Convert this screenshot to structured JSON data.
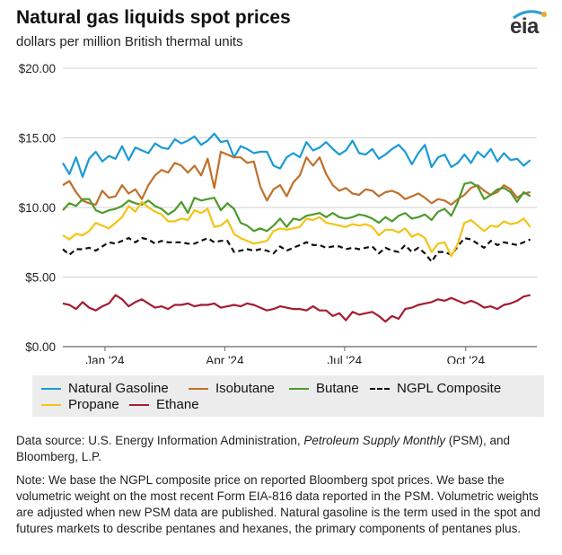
{
  "header": {
    "title": "Natural gas liquids spot prices",
    "subtitle": "dollars per million British thermal units",
    "logo_text": "eia"
  },
  "chart_data": {
    "type": "line",
    "title": "Natural gas liquids spot prices",
    "ylabel": "dollars per million British thermal units",
    "xlabel": "",
    "ylim": [
      0,
      20
    ],
    "yticks": [
      "$0.00",
      "$5.00",
      "$10.00",
      "$15.00",
      "$20.00"
    ],
    "ytick_values": [
      0,
      5,
      10,
      15,
      20
    ],
    "xlim_days": [
      0,
      360
    ],
    "xticks": [
      "Jan '24",
      "Apr '24",
      "Jul '24",
      "Oct '24"
    ],
    "xtick_days": [
      32,
      123,
      214,
      306
    ],
    "grid": true,
    "legend_position": "bottom",
    "series": [
      {
        "name": "Natural Gasoline",
        "color": "#1a9ad6",
        "dash": false,
        "x": [
          0,
          5,
          10,
          15,
          20,
          25,
          30,
          35,
          40,
          45,
          50,
          55,
          60,
          65,
          70,
          75,
          80,
          85,
          90,
          95,
          100,
          105,
          110,
          115,
          120,
          125,
          130,
          135,
          140,
          145,
          150,
          155,
          160,
          165,
          170,
          175,
          180,
          185,
          190,
          195,
          200,
          205,
          210,
          215,
          220,
          225,
          230,
          235,
          240,
          245,
          250,
          255,
          260,
          265,
          270,
          275,
          280,
          285,
          290,
          295,
          300,
          305,
          310,
          315,
          320,
          325,
          330,
          335,
          340,
          345,
          350,
          355
        ],
        "values": [
          13.2,
          12.4,
          13.6,
          12.2,
          13.5,
          14.0,
          13.3,
          13.7,
          13.5,
          14.4,
          13.4,
          14.3,
          14.1,
          13.9,
          14.6,
          14.3,
          14.2,
          14.9,
          14.6,
          14.8,
          15.1,
          14.5,
          14.8,
          15.3,
          14.7,
          14.8,
          13.6,
          14.4,
          14.2,
          13.9,
          14.0,
          14.0,
          13.0,
          12.8,
          13.6,
          13.9,
          13.6,
          14.7,
          14.1,
          14.3,
          14.7,
          14.2,
          13.8,
          14.1,
          14.8,
          13.9,
          13.8,
          14.2,
          13.5,
          13.8,
          14.2,
          14.5,
          14.0,
          13.1,
          13.9,
          14.5,
          12.9,
          13.6,
          13.8,
          12.9,
          13.2,
          13.8,
          13.2,
          14.0,
          13.6,
          14.2,
          13.3,
          13.9,
          13.4,
          13.5,
          13.0,
          13.4
        ]
      },
      {
        "name": "Isobutane",
        "color": "#c0702a",
        "dash": false,
        "x": [
          0,
          5,
          10,
          15,
          20,
          25,
          30,
          35,
          40,
          45,
          50,
          55,
          60,
          65,
          70,
          75,
          80,
          85,
          90,
          95,
          100,
          105,
          110,
          115,
          120,
          125,
          130,
          135,
          140,
          145,
          150,
          155,
          160,
          165,
          170,
          175,
          180,
          185,
          190,
          195,
          200,
          205,
          210,
          215,
          220,
          225,
          230,
          235,
          240,
          245,
          250,
          255,
          260,
          265,
          270,
          275,
          280,
          285,
          290,
          295,
          300,
          305,
          310,
          315,
          320,
          325,
          330,
          335,
          340,
          345,
          350,
          355
        ],
        "values": [
          11.6,
          11.9,
          11.1,
          10.5,
          10.3,
          10.2,
          11.2,
          10.7,
          10.8,
          11.6,
          11.0,
          11.3,
          10.6,
          11.6,
          12.3,
          12.7,
          12.5,
          13.2,
          13.0,
          12.5,
          13.0,
          12.3,
          13.5,
          11.4,
          14.0,
          13.8,
          13.6,
          13.6,
          13.2,
          13.3,
          11.5,
          10.5,
          11.3,
          11.6,
          10.8,
          11.8,
          12.3,
          13.6,
          13.0,
          13.6,
          12.4,
          11.6,
          11.2,
          11.4,
          11.0,
          10.9,
          11.3,
          11.2,
          10.8,
          11.1,
          11.2,
          11.0,
          10.6,
          10.8,
          11.0,
          10.7,
          10.3,
          10.6,
          10.5,
          10.2,
          10.6,
          10.9,
          11.4,
          11.6,
          11.2,
          10.9,
          11.1,
          11.6,
          11.3,
          10.7,
          11.0,
          11.1
        ]
      },
      {
        "name": "Butane",
        "color": "#4e9a2c",
        "dash": false,
        "x": [
          0,
          5,
          10,
          15,
          20,
          25,
          30,
          35,
          40,
          45,
          50,
          55,
          60,
          65,
          70,
          75,
          80,
          85,
          90,
          95,
          100,
          105,
          110,
          115,
          120,
          125,
          130,
          135,
          140,
          145,
          150,
          155,
          160,
          165,
          170,
          175,
          180,
          185,
          190,
          195,
          200,
          205,
          210,
          215,
          220,
          225,
          230,
          235,
          240,
          245,
          250,
          255,
          260,
          265,
          270,
          275,
          280,
          285,
          290,
          295,
          300,
          305,
          310,
          315,
          320,
          325,
          330,
          335,
          340,
          345,
          350,
          355
        ],
        "values": [
          9.8,
          10.3,
          10.1,
          10.6,
          10.6,
          9.8,
          9.6,
          9.8,
          9.9,
          10.1,
          10.5,
          10.3,
          10.2,
          10.5,
          10.1,
          9.9,
          9.5,
          9.8,
          10.4,
          9.6,
          10.7,
          10.5,
          10.6,
          10.7,
          9.8,
          10.3,
          9.9,
          8.9,
          8.7,
          8.3,
          8.5,
          8.3,
          8.7,
          9.2,
          8.6,
          9.2,
          9.1,
          9.4,
          9.5,
          9.6,
          9.3,
          9.6,
          9.3,
          9.2,
          9.3,
          9.5,
          9.4,
          9.2,
          8.9,
          9.3,
          9.0,
          9.4,
          9.6,
          9.2,
          9.3,
          9.5,
          9.1,
          9.7,
          9.9,
          9.4,
          10.4,
          11.7,
          11.8,
          11.5,
          10.6,
          10.9,
          11.3,
          11.4,
          11.1,
          10.4,
          11.1,
          10.8
        ]
      },
      {
        "name": "NGPL Composite",
        "color": "#111111",
        "dash": true,
        "x": [
          0,
          5,
          10,
          15,
          20,
          25,
          30,
          35,
          40,
          45,
          50,
          55,
          60,
          65,
          70,
          75,
          80,
          85,
          90,
          95,
          100,
          105,
          110,
          115,
          120,
          125,
          130,
          135,
          140,
          145,
          150,
          155,
          160,
          165,
          170,
          175,
          180,
          185,
          190,
          195,
          200,
          205,
          210,
          215,
          220,
          225,
          230,
          235,
          240,
          245,
          250,
          255,
          260,
          265,
          270,
          275,
          280,
          285,
          290,
          295,
          300,
          305,
          310,
          315,
          320,
          325,
          330,
          335,
          340,
          345,
          350,
          355
        ],
        "values": [
          7.0,
          6.6,
          7.0,
          7.0,
          7.1,
          6.9,
          7.2,
          7.5,
          7.4,
          7.6,
          7.8,
          7.5,
          7.8,
          7.7,
          7.4,
          7.6,
          7.5,
          7.5,
          7.5,
          7.4,
          7.4,
          7.6,
          7.8,
          7.5,
          7.6,
          7.6,
          6.8,
          6.9,
          7.0,
          6.9,
          7.0,
          6.9,
          6.7,
          7.2,
          6.9,
          7.1,
          7.3,
          7.5,
          7.3,
          7.3,
          7.1,
          7.2,
          7.2,
          7.0,
          7.1,
          7.0,
          7.1,
          7.2,
          6.7,
          7.1,
          6.9,
          6.8,
          7.3,
          6.8,
          7.1,
          6.7,
          6.1,
          6.8,
          6.8,
          6.6,
          7.2,
          7.8,
          7.7,
          7.4,
          7.1,
          7.6,
          7.3,
          7.5,
          7.4,
          7.3,
          7.5,
          7.7
        ]
      },
      {
        "name": "Propane",
        "color": "#f2c416",
        "dash": false,
        "x": [
          0,
          5,
          10,
          15,
          20,
          25,
          30,
          35,
          40,
          45,
          50,
          55,
          60,
          65,
          70,
          75,
          80,
          85,
          90,
          95,
          100,
          105,
          110,
          115,
          120,
          125,
          130,
          135,
          140,
          145,
          150,
          155,
          160,
          165,
          170,
          175,
          180,
          185,
          190,
          195,
          200,
          205,
          210,
          215,
          220,
          225,
          230,
          235,
          240,
          245,
          250,
          255,
          260,
          265,
          270,
          275,
          280,
          285,
          290,
          295,
          300,
          305,
          310,
          315,
          320,
          325,
          330,
          335,
          340,
          345,
          350,
          355
        ],
        "values": [
          8.0,
          7.7,
          8.1,
          8.0,
          8.3,
          8.9,
          8.7,
          8.5,
          8.9,
          9.3,
          10.1,
          9.7,
          10.4,
          10.0,
          9.7,
          9.5,
          9.0,
          9.0,
          9.2,
          9.1,
          9.8,
          9.6,
          9.9,
          8.6,
          8.7,
          9.1,
          8.1,
          7.8,
          7.6,
          7.4,
          7.5,
          7.6,
          8.3,
          8.5,
          8.4,
          8.5,
          8.6,
          9.2,
          9.1,
          9.3,
          8.9,
          8.8,
          8.7,
          8.6,
          8.8,
          8.7,
          8.8,
          8.6,
          8.0,
          8.4,
          8.4,
          8.2,
          8.5,
          7.9,
          8.1,
          7.8,
          6.8,
          7.4,
          7.5,
          6.5,
          7.4,
          8.9,
          9.1,
          8.7,
          8.3,
          8.7,
          8.6,
          9.0,
          8.8,
          8.9,
          9.2,
          8.6
        ]
      },
      {
        "name": "Ethane",
        "color": "#a51c30",
        "dash": false,
        "x": [
          0,
          5,
          10,
          15,
          20,
          25,
          30,
          35,
          40,
          45,
          50,
          55,
          60,
          65,
          70,
          75,
          80,
          85,
          90,
          95,
          100,
          105,
          110,
          115,
          120,
          125,
          130,
          135,
          140,
          145,
          150,
          155,
          160,
          165,
          170,
          175,
          180,
          185,
          190,
          195,
          200,
          205,
          210,
          215,
          220,
          225,
          230,
          235,
          240,
          245,
          250,
          255,
          260,
          265,
          270,
          275,
          280,
          285,
          290,
          295,
          300,
          305,
          310,
          315,
          320,
          325,
          330,
          335,
          340,
          345,
          350,
          355
        ],
        "values": [
          3.1,
          3.0,
          2.7,
          3.2,
          2.8,
          2.6,
          2.9,
          3.1,
          3.7,
          3.4,
          2.9,
          3.2,
          3.4,
          3.1,
          2.8,
          2.9,
          2.7,
          3.0,
          3.0,
          3.1,
          2.9,
          3.0,
          3.0,
          3.1,
          2.8,
          2.9,
          3.0,
          2.9,
          3.1,
          3.0,
          2.8,
          2.6,
          2.7,
          2.9,
          2.8,
          2.7,
          2.7,
          2.6,
          2.9,
          2.6,
          2.6,
          2.2,
          2.4,
          1.9,
          2.5,
          2.3,
          2.4,
          2.5,
          2.2,
          1.8,
          2.2,
          2.0,
          2.7,
          2.8,
          3.0,
          3.1,
          3.2,
          3.4,
          3.3,
          3.5,
          3.3,
          3.1,
          3.3,
          3.1,
          2.8,
          2.9,
          2.7,
          3.0,
          3.1,
          3.3,
          3.6,
          3.7
        ]
      }
    ]
  },
  "legend": [
    {
      "label": "Natural Gasoline",
      "color": "#1a9ad6",
      "dash": false
    },
    {
      "label": "Isobutane",
      "color": "#c0702a",
      "dash": false
    },
    {
      "label": "Butane",
      "color": "#4e9a2c",
      "dash": false
    },
    {
      "label": "NGPL Composite",
      "color": "#111111",
      "dash": true
    },
    {
      "label": "Propane",
      "color": "#f2c416",
      "dash": false
    },
    {
      "label": "Ethane",
      "color": "#a51c30",
      "dash": false
    }
  ],
  "footer": {
    "source_prefix": "Data source: U.S. Energy Information Administration, ",
    "source_italic": "Petroleum Supply Monthly",
    "source_suffix": " (PSM), and Bloomberg, L.P.",
    "note": "Note: We base the NGPL composite price on reported Bloomberg spot prices. We base the volumetric weight on the most recent Form EIA-816 data reported in the PSM. Volumetric weights are adjusted when new PSM data are published. Natural gasoline is the term used in the spot and futures markets to describe pentanes and hexanes, the primary components of pentanes plus."
  }
}
